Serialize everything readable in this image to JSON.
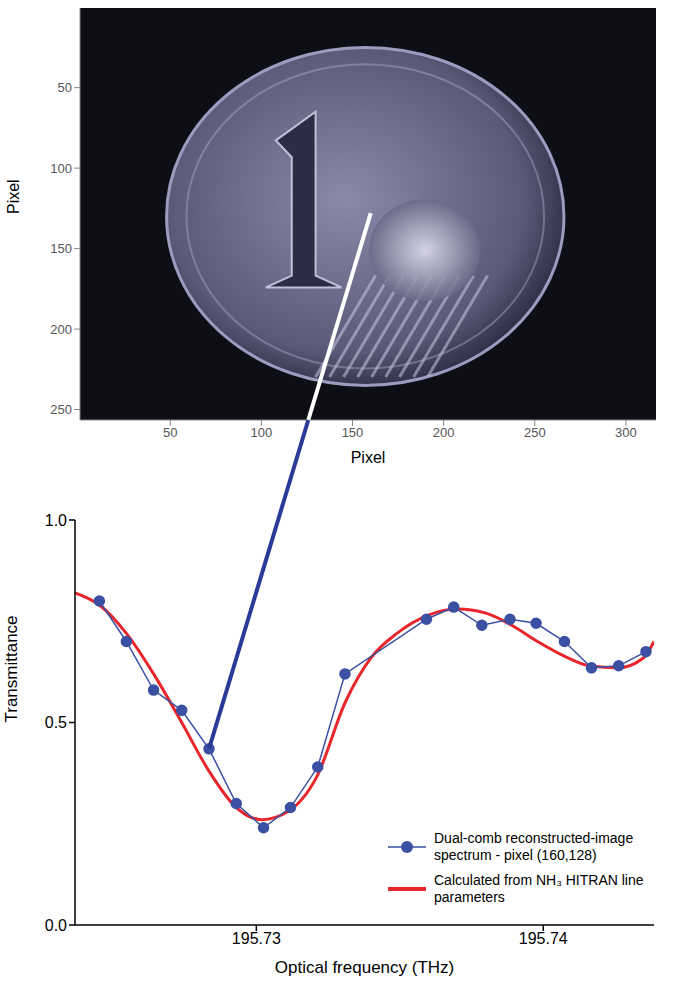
{
  "chart_data": [
    {
      "type": "image",
      "xlabel": "Pixel",
      "ylabel": "Pixel",
      "xlim": [
        0.5,
        316.5
      ],
      "ylim": [
        256.5,
        0.5
      ],
      "xticks": [
        50,
        100,
        150,
        200,
        250,
        300
      ],
      "yticks": [
        50,
        100,
        150,
        200,
        250
      ],
      "selected_pixel": [
        160,
        128
      ]
    },
    {
      "type": "line",
      "xlabel": "Optical frequency (THz)",
      "ylabel": "Transmittance",
      "xlim": [
        195.72368,
        195.74386
      ],
      "ylim": [
        0,
        1
      ],
      "xticks": [
        195.73,
        195.74
      ],
      "yticks": [
        {
          "value": 0,
          "label": "0.0"
        },
        {
          "value": 0.5,
          "label": "0.5"
        },
        {
          "value": 1,
          "label": "1.0"
        }
      ],
      "legend": "lower right",
      "series": [
        {
          "name": "Dual-comb reconstructed-image spectrum - pixel (160,128)",
          "color": "#3b4fa3",
          "marker": "circle",
          "line_style": "solid",
          "x": [
            195.72453,
            195.72547,
            195.72642,
            195.7274,
            195.72835,
            195.7293,
            195.73025,
            195.73119,
            195.73214,
            195.73309,
            195.73593,
            195.73688,
            195.73786,
            195.73884,
            195.73975,
            195.74074,
            195.74168,
            195.74263,
            195.74358
          ],
          "values": [
            0.8,
            0.7,
            0.58,
            0.53,
            0.435,
            0.3,
            0.24,
            0.29,
            0.39,
            0.62,
            0.755,
            0.785,
            0.74,
            0.755,
            0.745,
            0.7,
            0.635,
            0.64,
            0.675
          ]
        },
        {
          "name": "Calculated from NH₃ HITRAN line parameters",
          "color": "#e8262b",
          "marker": "none",
          "line_style": "solid",
          "x": [
            195.72368,
            195.72453,
            195.72547,
            195.72642,
            195.7274,
            195.72835,
            195.7293,
            195.7302,
            195.7311,
            195.7321,
            195.7331,
            195.734,
            195.7349,
            195.736,
            195.737,
            195.738,
            195.7389,
            195.7398,
            195.7407,
            195.7416,
            195.7426,
            195.7435,
            195.74386
          ],
          "values": [
            0.82,
            0.79,
            0.72,
            0.62,
            0.5,
            0.38,
            0.29,
            0.26,
            0.28,
            0.365,
            0.55,
            0.66,
            0.72,
            0.765,
            0.78,
            0.77,
            0.74,
            0.7,
            0.665,
            0.64,
            0.635,
            0.66,
            0.7
          ]
        }
      ]
    }
  ]
}
